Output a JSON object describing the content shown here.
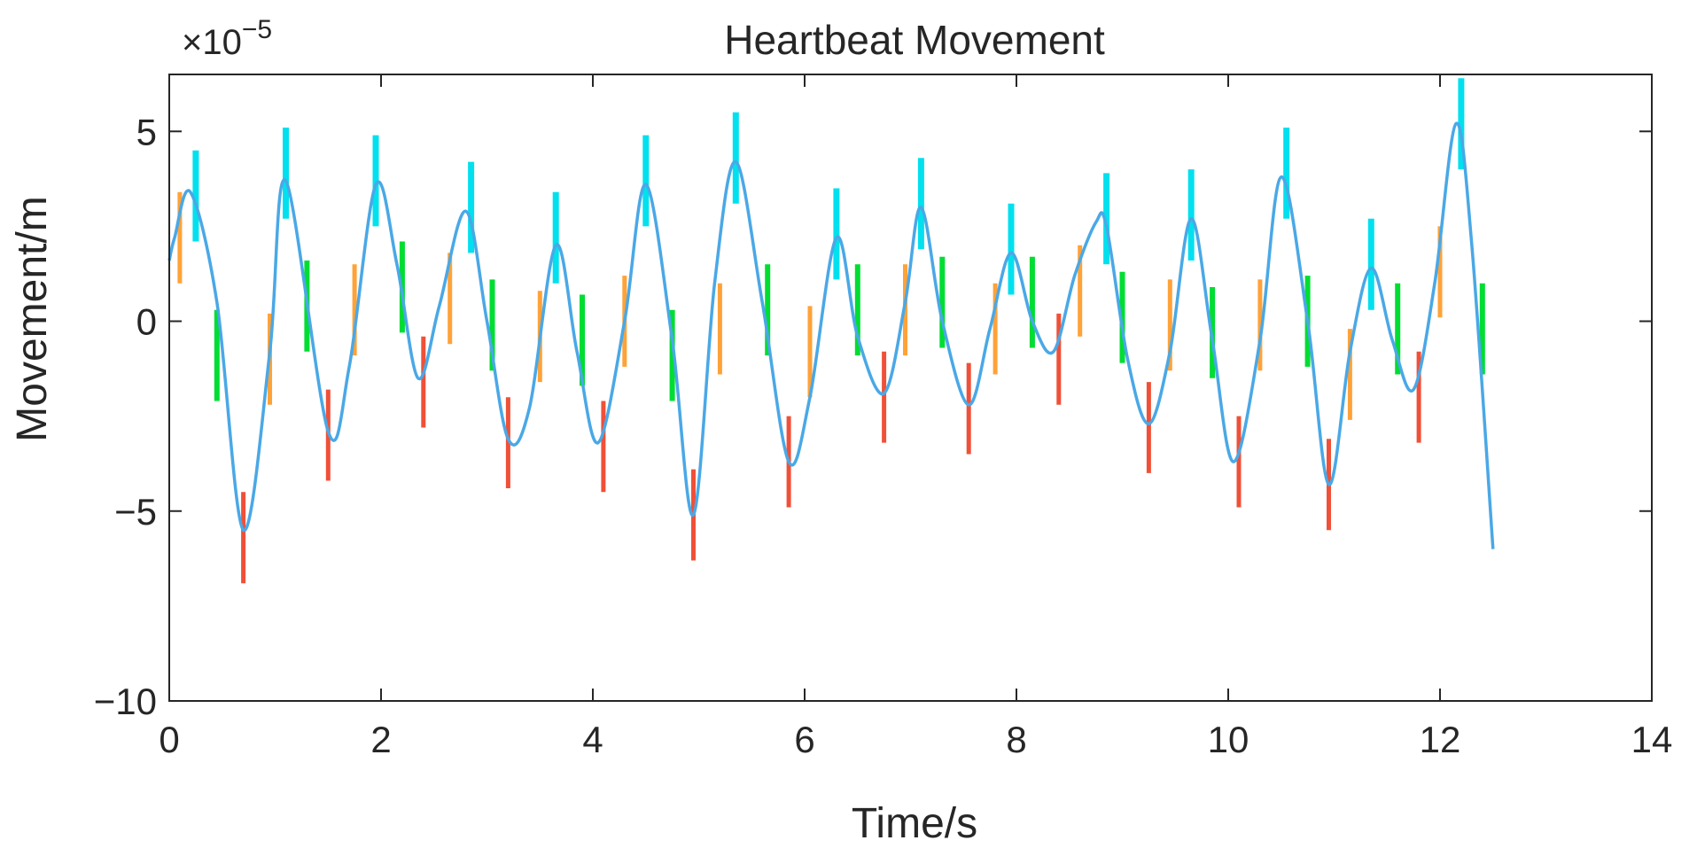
{
  "chart_data": {
    "type": "line",
    "title": "Heartbeat Movement",
    "xlabel": "Time/s",
    "ylabel": "Movement/m",
    "y_exponent": "×10^-5",
    "y_exponent_base": "×10",
    "y_exponent_power": "−5",
    "xlim": [
      0,
      14
    ],
    "ylim": [
      -10,
      6.5
    ],
    "grid": false,
    "legend": "none",
    "x_ticks": [
      0,
      2,
      4,
      6,
      8,
      10,
      12,
      14
    ],
    "x_tick_labels": [
      "0",
      "2",
      "4",
      "6",
      "8",
      "10",
      "12",
      "14"
    ],
    "y_ticks": [
      -10,
      -5,
      0,
      5
    ],
    "y_tick_labels": [
      "−10",
      "−5",
      "0",
      "5"
    ],
    "colors": {
      "signal": "#4aa8e6",
      "peak": "#00e0ee",
      "falling": "#00dd33",
      "valley": "#f05038",
      "rising": "#ffa238",
      "axes": "#262626"
    },
    "series": [
      {
        "values_unit": "1e-5 m",
        "x": [
          0.0,
          0.05,
          0.2,
          0.45,
          0.7,
          0.95,
          1.1,
          1.5,
          1.7,
          1.95,
          2.15,
          2.35,
          2.55,
          2.8,
          3.0,
          3.2,
          3.4,
          3.65,
          3.85,
          4.05,
          4.3,
          4.5,
          4.75,
          4.95,
          5.15,
          5.35,
          5.6,
          5.85,
          6.05,
          6.3,
          6.5,
          6.75,
          6.95,
          7.1,
          7.3,
          7.55,
          7.75,
          7.95,
          8.15,
          8.35,
          8.55,
          8.75,
          8.85,
          9.05,
          9.25,
          9.45,
          9.65,
          9.85,
          10.05,
          10.3,
          10.5,
          10.75,
          10.95,
          11.15,
          11.35,
          11.55,
          11.75,
          11.95,
          12.15,
          12.3,
          12.5
        ],
        "y": [
          1.6,
          2.2,
          3.4,
          0.5,
          -5.5,
          -0.8,
          3.7,
          -2.9,
          -1.2,
          3.6,
          1.5,
          -1.5,
          0.4,
          2.9,
          0.0,
          -3.1,
          -2.3,
          2.0,
          -0.8,
          -3.2,
          0.0,
          3.6,
          -0.5,
          -5.1,
          1.0,
          4.2,
          0.5,
          -3.7,
          -2.0,
          2.2,
          -0.4,
          -1.9,
          0.5,
          3.0,
          0.0,
          -2.2,
          -0.2,
          1.8,
          0.0,
          -0.8,
          1.2,
          2.6,
          2.5,
          -1.0,
          -2.7,
          -0.8,
          2.7,
          -0.5,
          -3.7,
          -0.5,
          3.8,
          0.0,
          -4.3,
          -0.8,
          1.4,
          -0.5,
          -1.8,
          1.0,
          5.2,
          2.0,
          -6.0
        ]
      }
    ],
    "markers": {
      "peak": [
        [
          0.25,
          3.3
        ],
        [
          1.1,
          3.9
        ],
        [
          1.95,
          3.7
        ],
        [
          2.85,
          3.0
        ],
        [
          3.65,
          2.2
        ],
        [
          4.5,
          3.7
        ],
        [
          5.35,
          4.3
        ],
        [
          6.3,
          2.3
        ],
        [
          7.1,
          3.1
        ],
        [
          7.95,
          1.9
        ],
        [
          8.85,
          2.7
        ],
        [
          9.65,
          2.8
        ],
        [
          10.55,
          3.9
        ],
        [
          11.35,
          1.5
        ],
        [
          12.2,
          5.2
        ]
      ],
      "falling": [
        [
          0.45,
          -0.9
        ],
        [
          1.3,
          0.4
        ],
        [
          2.2,
          0.9
        ],
        [
          3.05,
          -0.1
        ],
        [
          3.9,
          -0.5
        ],
        [
          4.75,
          -0.9
        ],
        [
          5.65,
          0.3
        ],
        [
          6.5,
          0.3
        ],
        [
          7.3,
          0.5
        ],
        [
          8.15,
          0.5
        ],
        [
          9.0,
          0.1
        ],
        [
          9.85,
          -0.3
        ],
        [
          10.75,
          0.0
        ],
        [
          11.6,
          -0.2
        ],
        [
          12.4,
          -0.2
        ]
      ],
      "valley": [
        [
          0.7,
          -5.7
        ],
        [
          1.5,
          -3.0
        ],
        [
          2.4,
          -1.6
        ],
        [
          3.2,
          -3.2
        ],
        [
          4.1,
          -3.3
        ],
        [
          4.95,
          -5.1
        ],
        [
          5.85,
          -3.7
        ],
        [
          6.75,
          -2.0
        ],
        [
          7.55,
          -2.3
        ],
        [
          8.4,
          -1.0
        ],
        [
          9.25,
          -2.8
        ],
        [
          10.1,
          -3.7
        ],
        [
          10.95,
          -4.3
        ],
        [
          11.8,
          -2.0
        ]
      ],
      "rising": [
        [
          0.1,
          2.2
        ],
        [
          0.95,
          -1.0
        ],
        [
          1.75,
          0.3
        ],
        [
          2.65,
          0.6
        ],
        [
          3.5,
          -0.4
        ],
        [
          4.3,
          0.0
        ],
        [
          5.2,
          -0.2
        ],
        [
          6.05,
          -0.8
        ],
        [
          6.95,
          0.3
        ],
        [
          7.8,
          -0.2
        ],
        [
          8.6,
          0.8
        ],
        [
          9.45,
          -0.1
        ],
        [
          10.3,
          -0.1
        ],
        [
          11.15,
          -1.4
        ],
        [
          12.0,
          1.3
        ]
      ]
    }
  }
}
